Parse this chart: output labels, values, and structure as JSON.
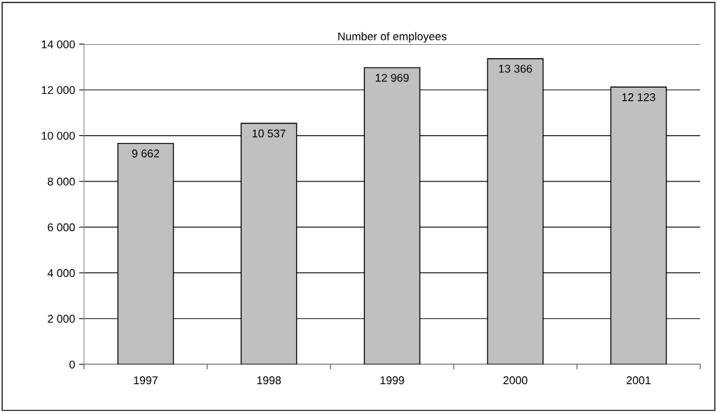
{
  "chart_data": {
    "type": "bar",
    "title": "Number of employees",
    "categories": [
      "1997",
      "1998",
      "1999",
      "2000",
      "2001"
    ],
    "values": [
      9662,
      10537,
      12969,
      13366,
      12123
    ],
    "value_labels": [
      "9 662",
      "10 537",
      "12 969",
      "13 366",
      "12 123"
    ],
    "color": "#c0c0c0",
    "ylim": [
      0,
      14000
    ],
    "yticks": [
      0,
      {
        "value": 2000,
        "label": "2 000"
      },
      {
        "value": 4000,
        "label": "4 000"
      },
      {
        "value": 6000,
        "label": "6 000"
      },
      {
        "value": 8000,
        "label": "8 000"
      },
      {
        "value": 10000,
        "label": "10 000"
      },
      {
        "value": 12000,
        "label": "12 000"
      },
      {
        "value": 14000,
        "label": "14 000"
      }
    ],
    "grid": "y"
  }
}
